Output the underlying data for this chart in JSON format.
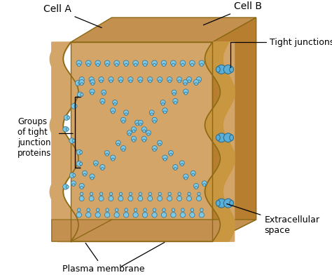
{
  "bg_color": "#ffffff",
  "cell_color_main": "#D4A568",
  "cell_color_top": "#C49050",
  "cell_color_side": "#B87E30",
  "cell_color_gap": "#C8963C",
  "cell_edge_color": "#8B6914",
  "protein_color": "#7EC8E3",
  "protein_color2": "#5BAFD6",
  "protein_edge_color": "#2E6E8E",
  "label_fontsize": 9,
  "labels": {
    "cell_a": "Cell A",
    "cell_b": "Cell B",
    "tight_junctions": "Tight junctions",
    "groups": "Groups\nof tight\njunction\nproteins",
    "plasma_membrane": "Plasma membrane",
    "extracellular": "Extracellular\nspace"
  },
  "figsize": [
    4.74,
    3.92
  ],
  "dpi": 100
}
